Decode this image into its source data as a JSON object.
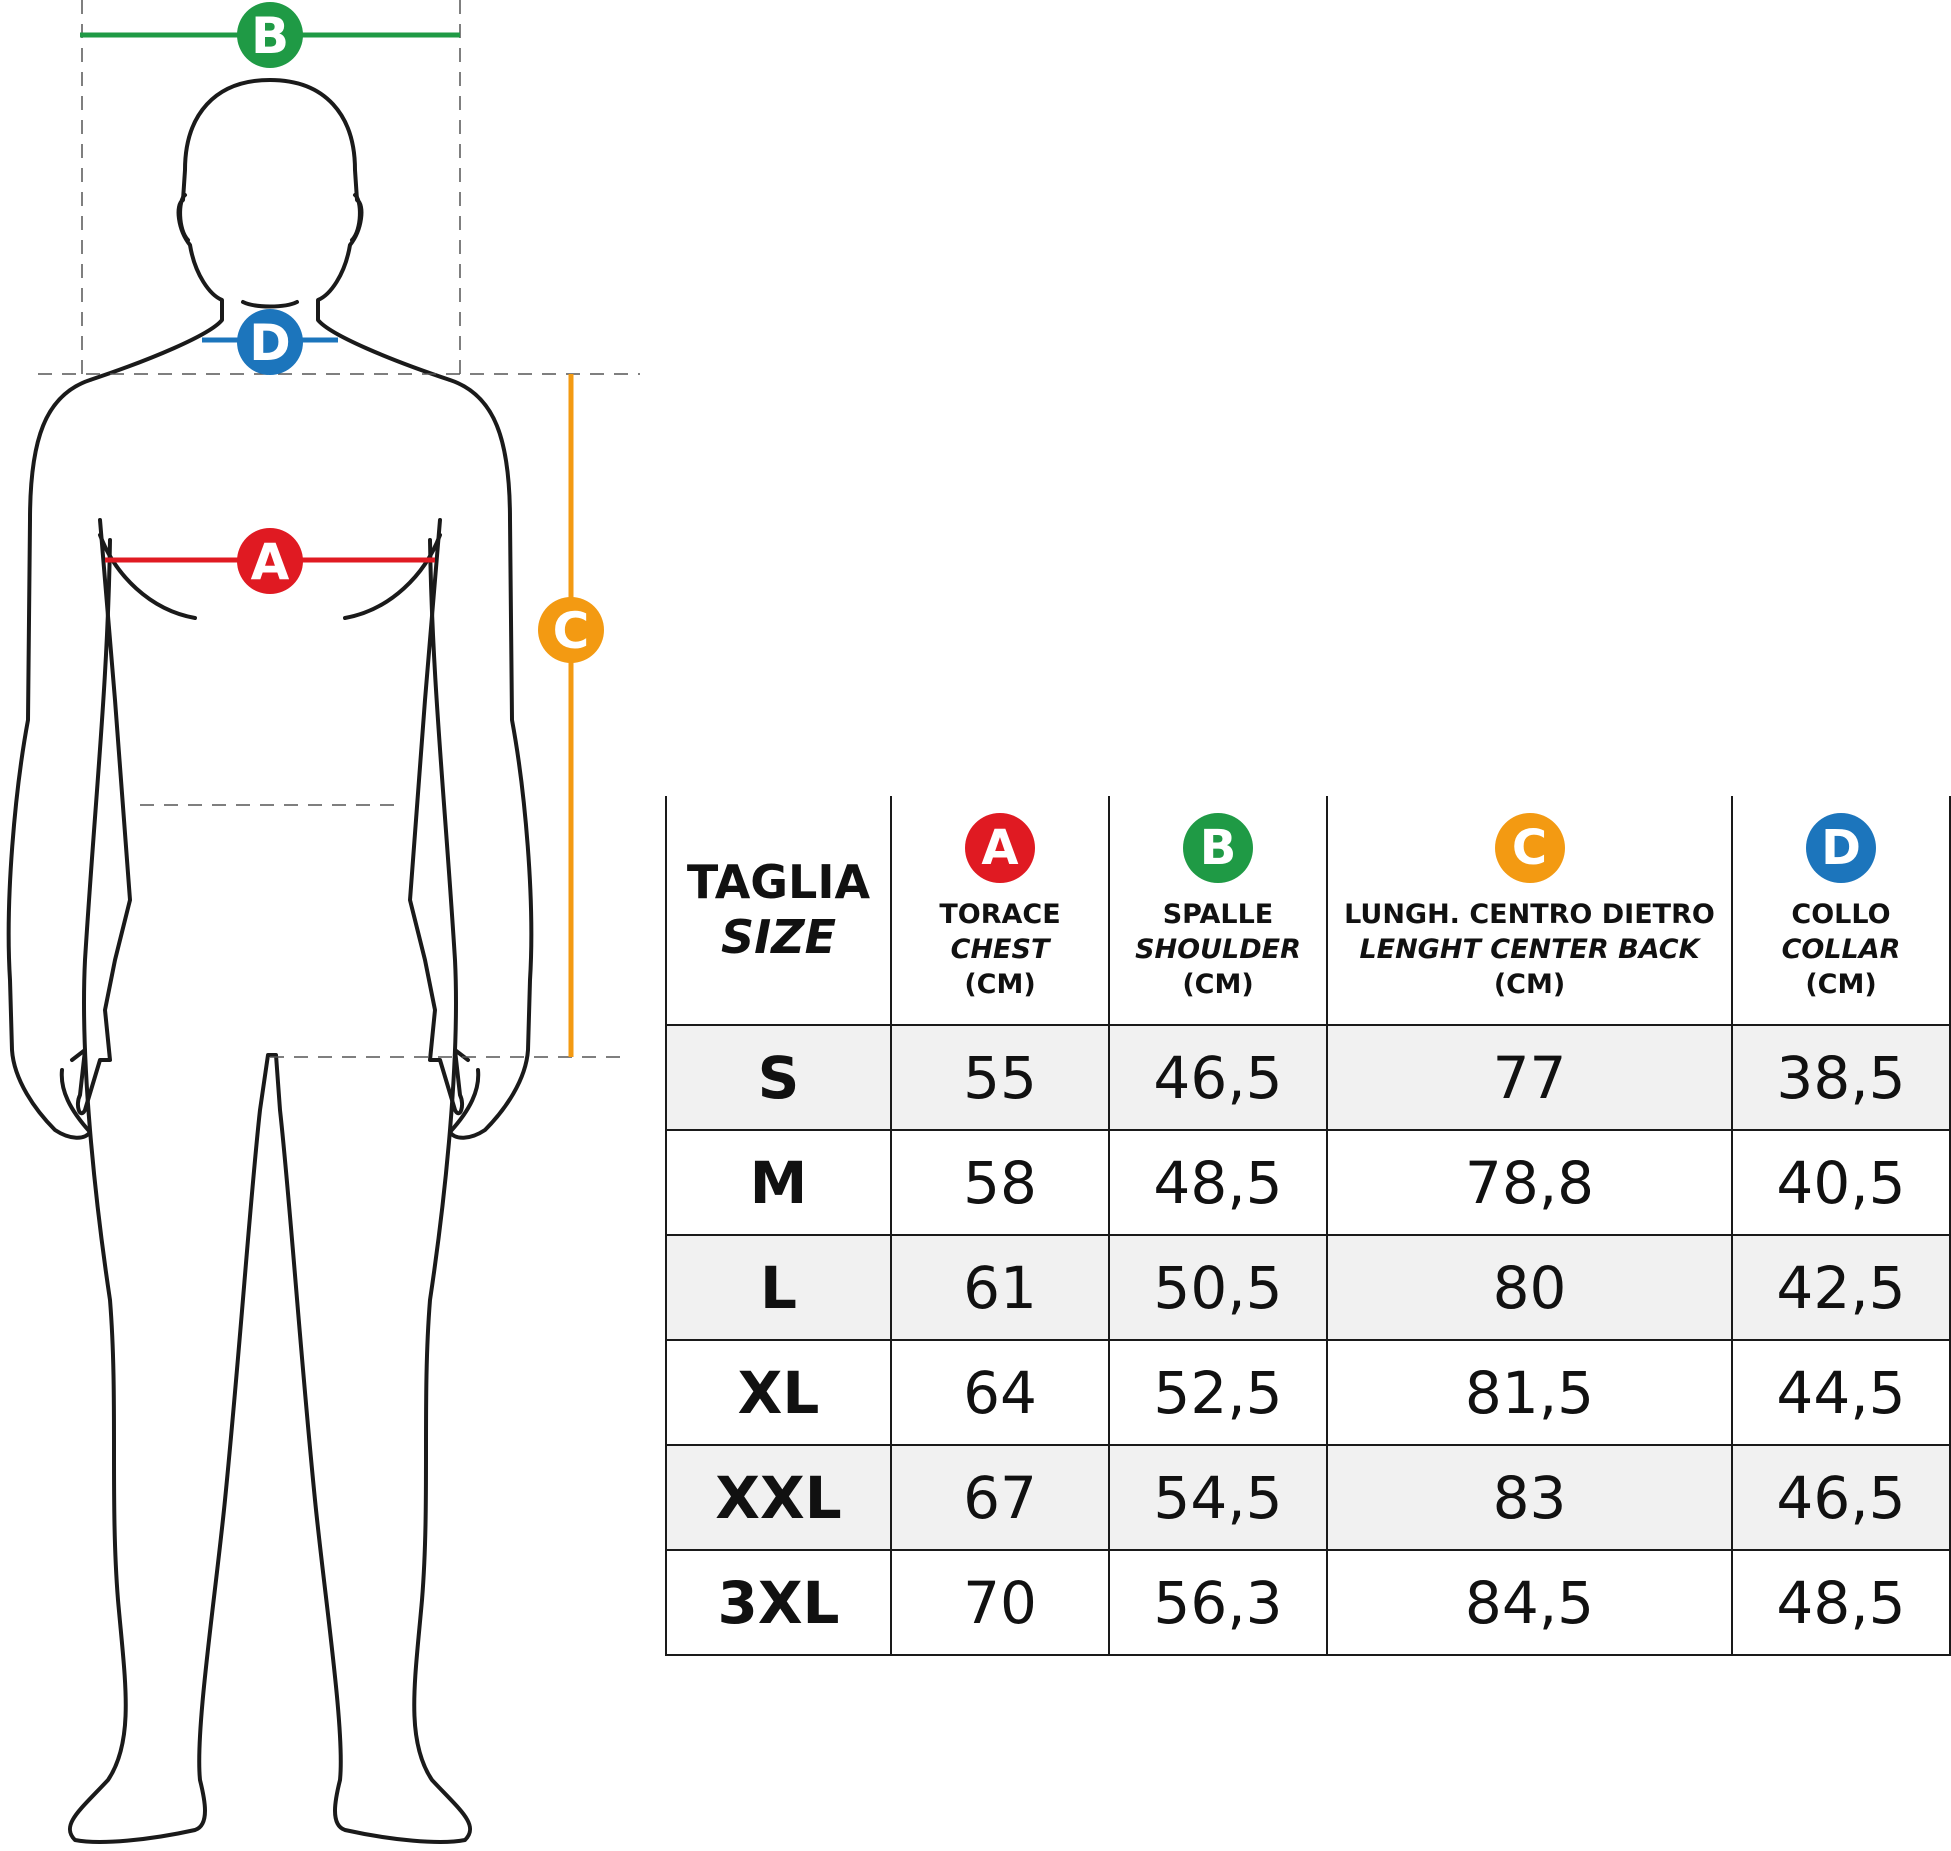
{
  "colors": {
    "A": "#e01a22",
    "B": "#1f9a45",
    "C": "#f39a12",
    "D": "#1c75bc",
    "outline": "#1a1a1a",
    "row_shade": "#f1f1f1"
  },
  "figure": {
    "labels": {
      "A": "A",
      "B": "B",
      "C": "C",
      "D": "D"
    }
  },
  "table": {
    "size_header": {
      "it": "TAGLIA",
      "en": "SIZE"
    },
    "columns": [
      {
        "badge": "A",
        "it": "TORACE",
        "en": "CHEST",
        "unit": "(CM)"
      },
      {
        "badge": "B",
        "it": "SPALLE",
        "en": "SHOULDER",
        "unit": "(CM)"
      },
      {
        "badge": "C",
        "it": "LUNGH. CENTRO DIETRO",
        "en": "LENGHT CENTER BACK",
        "unit": "(CM)"
      },
      {
        "badge": "D",
        "it": "COLLO",
        "en": "COLLAR",
        "unit": "(CM)"
      }
    ],
    "rows": [
      {
        "size": "S",
        "values": [
          "55",
          "46,5",
          "77",
          "38,5"
        ]
      },
      {
        "size": "M",
        "values": [
          "58",
          "48,5",
          "78,8",
          "40,5"
        ]
      },
      {
        "size": "L",
        "values": [
          "61",
          "50,5",
          "80",
          "42,5"
        ]
      },
      {
        "size": "XL",
        "values": [
          "64",
          "52,5",
          "81,5",
          "44,5"
        ]
      },
      {
        "size": "XXL",
        "values": [
          "67",
          "54,5",
          "83",
          "46,5"
        ]
      },
      {
        "size": "3XL",
        "values": [
          "70",
          "56,3",
          "84,5",
          "48,5"
        ]
      }
    ]
  }
}
